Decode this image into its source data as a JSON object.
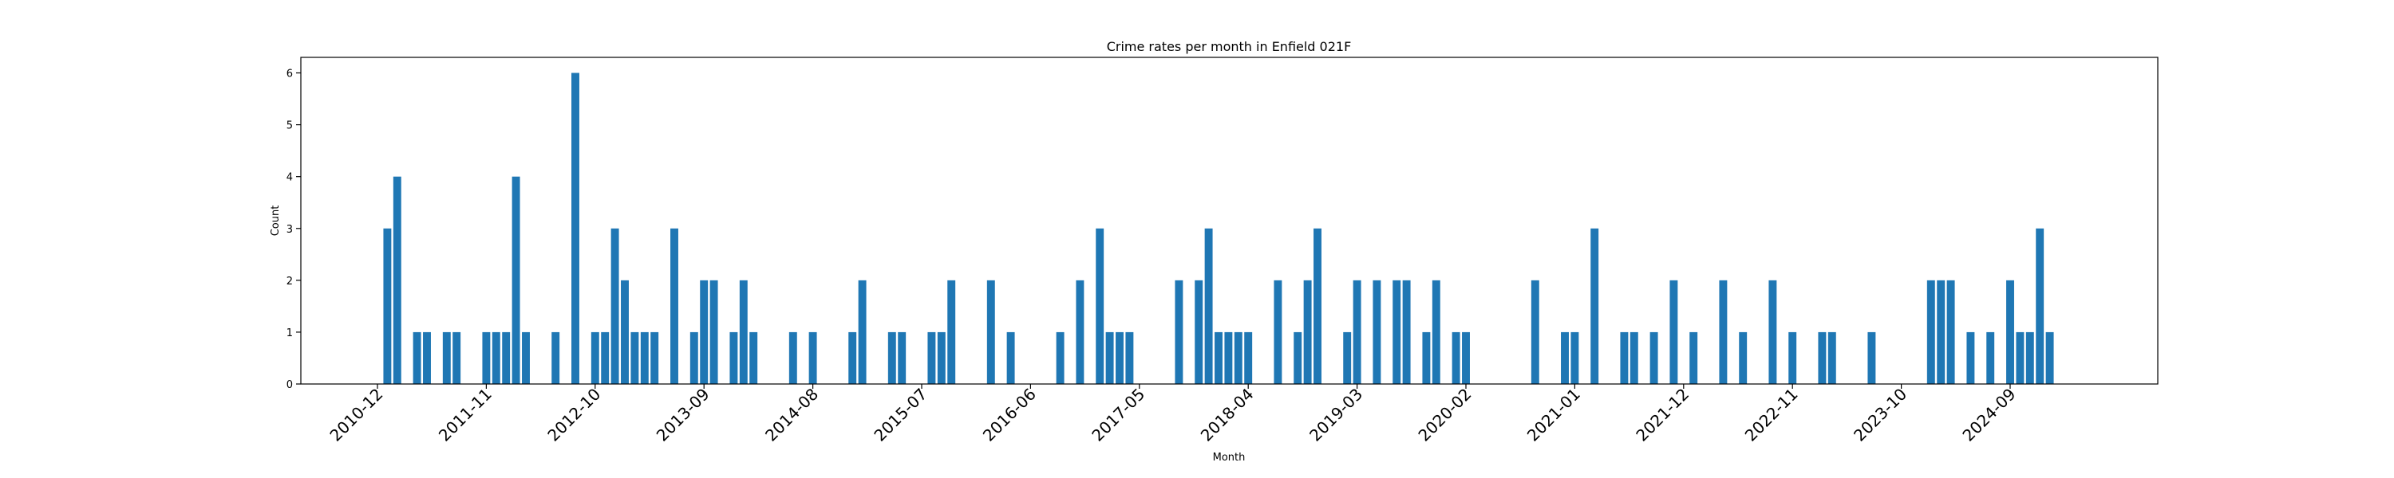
{
  "chart_data": {
    "type": "bar",
    "title": "Crime rates per month in Enfield 021F",
    "xlabel": "Month",
    "ylabel": "Count",
    "ylim": [
      0,
      6.3
    ],
    "yticks": [
      0,
      1,
      2,
      3,
      4,
      5,
      6
    ],
    "xtick_labels": [
      "2010-12",
      "2011-11",
      "2012-10",
      "2013-09",
      "2014-08",
      "2015-07",
      "2016-06",
      "2017-05",
      "2018-04",
      "2019-03",
      "2020-02",
      "2021-01",
      "2021-12",
      "2022-11",
      "2023-10",
      "2024-09"
    ],
    "color": "#1f77b4",
    "grid": false,
    "points": [
      {
        "x": "2011-01",
        "y": 3
      },
      {
        "x": "2011-02",
        "y": 4
      },
      {
        "x": "2011-04",
        "y": 1
      },
      {
        "x": "2011-05",
        "y": 1
      },
      {
        "x": "2011-07",
        "y": 1
      },
      {
        "x": "2011-08",
        "y": 1
      },
      {
        "x": "2011-11",
        "y": 1
      },
      {
        "x": "2011-12",
        "y": 1
      },
      {
        "x": "2012-01",
        "y": 1
      },
      {
        "x": "2012-02",
        "y": 4
      },
      {
        "x": "2012-03",
        "y": 1
      },
      {
        "x": "2012-06",
        "y": 1
      },
      {
        "x": "2012-08",
        "y": 6
      },
      {
        "x": "2012-10",
        "y": 1
      },
      {
        "x": "2012-11",
        "y": 1
      },
      {
        "x": "2012-12",
        "y": 3
      },
      {
        "x": "2013-01",
        "y": 2
      },
      {
        "x": "2013-02",
        "y": 1
      },
      {
        "x": "2013-03",
        "y": 1
      },
      {
        "x": "2013-04",
        "y": 1
      },
      {
        "x": "2013-06",
        "y": 3
      },
      {
        "x": "2013-08",
        "y": 1
      },
      {
        "x": "2013-09",
        "y": 2
      },
      {
        "x": "2013-10",
        "y": 2
      },
      {
        "x": "2013-12",
        "y": 1
      },
      {
        "x": "2014-01",
        "y": 2
      },
      {
        "x": "2014-02",
        "y": 1
      },
      {
        "x": "2014-06",
        "y": 1
      },
      {
        "x": "2014-08",
        "y": 1
      },
      {
        "x": "2014-12",
        "y": 1
      },
      {
        "x": "2015-01",
        "y": 2
      },
      {
        "x": "2015-04",
        "y": 1
      },
      {
        "x": "2015-05",
        "y": 1
      },
      {
        "x": "2015-08",
        "y": 1
      },
      {
        "x": "2015-09",
        "y": 1
      },
      {
        "x": "2015-10",
        "y": 2
      },
      {
        "x": "2016-02",
        "y": 2
      },
      {
        "x": "2016-04",
        "y": 1
      },
      {
        "x": "2016-09",
        "y": 1
      },
      {
        "x": "2016-11",
        "y": 2
      },
      {
        "x": "2017-01",
        "y": 3
      },
      {
        "x": "2017-02",
        "y": 1
      },
      {
        "x": "2017-03",
        "y": 1
      },
      {
        "x": "2017-04",
        "y": 1
      },
      {
        "x": "2017-09",
        "y": 2
      },
      {
        "x": "2017-11",
        "y": 2
      },
      {
        "x": "2017-12",
        "y": 3
      },
      {
        "x": "2018-01",
        "y": 1
      },
      {
        "x": "2018-02",
        "y": 1
      },
      {
        "x": "2018-03",
        "y": 1
      },
      {
        "x": "2018-04",
        "y": 1
      },
      {
        "x": "2018-07",
        "y": 2
      },
      {
        "x": "2018-09",
        "y": 1
      },
      {
        "x": "2018-10",
        "y": 2
      },
      {
        "x": "2018-11",
        "y": 3
      },
      {
        "x": "2019-02",
        "y": 1
      },
      {
        "x": "2019-03",
        "y": 2
      },
      {
        "x": "2019-05",
        "y": 2
      },
      {
        "x": "2019-07",
        "y": 2
      },
      {
        "x": "2019-08",
        "y": 2
      },
      {
        "x": "2019-10",
        "y": 1
      },
      {
        "x": "2019-11",
        "y": 2
      },
      {
        "x": "2020-01",
        "y": 1
      },
      {
        "x": "2020-02",
        "y": 1
      },
      {
        "x": "2020-09",
        "y": 2
      },
      {
        "x": "2020-12",
        "y": 1
      },
      {
        "x": "2021-01",
        "y": 1
      },
      {
        "x": "2021-03",
        "y": 3
      },
      {
        "x": "2021-06",
        "y": 1
      },
      {
        "x": "2021-07",
        "y": 1
      },
      {
        "x": "2021-09",
        "y": 1
      },
      {
        "x": "2021-11",
        "y": 2
      },
      {
        "x": "2022-01",
        "y": 1
      },
      {
        "x": "2022-04",
        "y": 2
      },
      {
        "x": "2022-06",
        "y": 1
      },
      {
        "x": "2022-09",
        "y": 2
      },
      {
        "x": "2022-11",
        "y": 1
      },
      {
        "x": "2023-02",
        "y": 1
      },
      {
        "x": "2023-03",
        "y": 1
      },
      {
        "x": "2023-07",
        "y": 1
      },
      {
        "x": "2024-01",
        "y": 2
      },
      {
        "x": "2024-02",
        "y": 2
      },
      {
        "x": "2024-03",
        "y": 2
      },
      {
        "x": "2024-05",
        "y": 1
      },
      {
        "x": "2024-07",
        "y": 1
      },
      {
        "x": "2024-09",
        "y": 2
      },
      {
        "x": "2024-10",
        "y": 1
      },
      {
        "x": "2024-11",
        "y": 1
      },
      {
        "x": "2024-12",
        "y": 3
      },
      {
        "x": "2025-01",
        "y": 1
      }
    ]
  }
}
